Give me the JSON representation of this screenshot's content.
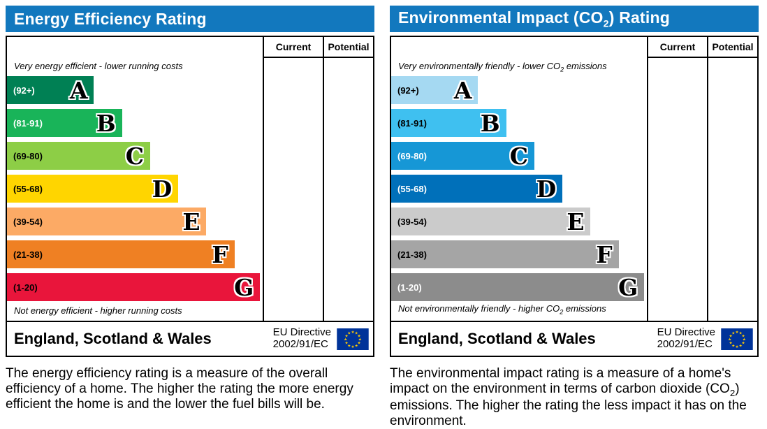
{
  "colors": {
    "header_bg": "#1278be",
    "border": "#000000",
    "flag_bg": "#003399",
    "flag_star": "#ffcc00"
  },
  "left": {
    "title": "Energy Efficiency Rating",
    "col_current": "Current",
    "col_potential": "Potential",
    "caption_top": "Very energy efficient - lower running costs",
    "caption_bottom": "Not energy efficient - higher running costs",
    "bands": [
      {
        "range": "(92+)",
        "letter": "A",
        "color": "#008054",
        "width_pct": 34,
        "range_color": "#ffffff"
      },
      {
        "range": "(81-91)",
        "letter": "B",
        "color": "#19b459",
        "width_pct": 45,
        "range_color": "#ffffff"
      },
      {
        "range": "(69-80)",
        "letter": "C",
        "color": "#8dce46",
        "width_pct": 56,
        "range_color": "#000000"
      },
      {
        "range": "(55-68)",
        "letter": "D",
        "color": "#ffd500",
        "width_pct": 67,
        "range_color": "#000000"
      },
      {
        "range": "(39-54)",
        "letter": "E",
        "color": "#fcaa65",
        "width_pct": 78,
        "range_color": "#000000"
      },
      {
        "range": "(21-38)",
        "letter": "F",
        "color": "#ef8023",
        "width_pct": 89,
        "range_color": "#000000"
      },
      {
        "range": "(1-20)",
        "letter": "G",
        "color": "#e9153b",
        "width_pct": 99,
        "range_color": "#000000"
      }
    ],
    "footer_region": "England, Scotland & Wales",
    "footer_directive_1": "EU Directive",
    "footer_directive_2": "2002/91/EC",
    "description": "The energy efficiency rating is a measure of the overall efficiency of a home. The higher the rating the more energy efficient the home is and the lower the fuel bills will be."
  },
  "right": {
    "title_pre": "Environmental Impact (CO",
    "title_sub": "2",
    "title_post": ") Rating",
    "col_current": "Current",
    "col_potential": "Potential",
    "caption_top_pre": "Very environmentally friendly - lower CO",
    "caption_top_sub": "2",
    "caption_top_post": " emissions",
    "caption_bottom_pre": "Not environmentally friendly - higher CO",
    "caption_bottom_sub": "2",
    "caption_bottom_post": " emissions",
    "bands": [
      {
        "range": "(92+)",
        "letter": "A",
        "color": "#a5d9f2",
        "width_pct": 34,
        "range_color": "#000000"
      },
      {
        "range": "(81-91)",
        "letter": "B",
        "color": "#3fc0f0",
        "width_pct": 45,
        "range_color": "#000000"
      },
      {
        "range": "(69-80)",
        "letter": "C",
        "color": "#1697d6",
        "width_pct": 56,
        "range_color": "#ffffff"
      },
      {
        "range": "(55-68)",
        "letter": "D",
        "color": "#0070ba",
        "width_pct": 67,
        "range_color": "#ffffff"
      },
      {
        "range": "(39-54)",
        "letter": "E",
        "color": "#cbcbcb",
        "width_pct": 78,
        "range_color": "#000000"
      },
      {
        "range": "(21-38)",
        "letter": "F",
        "color": "#a5a5a5",
        "width_pct": 89,
        "range_color": "#000000"
      },
      {
        "range": "(1-20)",
        "letter": "G",
        "color": "#8c8c8c",
        "width_pct": 99,
        "range_color": "#ffffff"
      }
    ],
    "footer_region": "England, Scotland & Wales",
    "footer_directive_1": "EU Directive",
    "footer_directive_2": "2002/91/EC",
    "description_pre": "The environmental impact rating is a measure of a home's impact on the environment in terms of carbon dioxide (CO",
    "description_sub": "2",
    "description_post": ") emissions. The higher the rating the less impact it has on the environment."
  },
  "chart_data": [
    {
      "type": "bar",
      "title": "Energy Efficiency Rating",
      "categories": [
        "A (92+)",
        "B (81-91)",
        "C (69-80)",
        "D (55-68)",
        "E (39-54)",
        "F (21-38)",
        "G (1-20)"
      ],
      "values": [
        34,
        45,
        56,
        67,
        78,
        89,
        99
      ],
      "value_note": "fixed-scale band widths (% of band column); no Current or Potential rating values are shown",
      "bar_colors": [
        "#008054",
        "#19b459",
        "#8dce46",
        "#ffd500",
        "#fcaa65",
        "#ef8023",
        "#e9153b"
      ],
      "columns": [
        "Current",
        "Potential"
      ],
      "top_label": "Very energy efficient - lower running costs",
      "bottom_label": "Not energy efficient - higher running costs",
      "footer": "England, Scotland & Wales — EU Directive 2002/91/EC"
    },
    {
      "type": "bar",
      "title": "Environmental Impact (CO2) Rating",
      "categories": [
        "A (92+)",
        "B (81-91)",
        "C (69-80)",
        "D (55-68)",
        "E (39-54)",
        "F (21-38)",
        "G (1-20)"
      ],
      "values": [
        34,
        45,
        56,
        67,
        78,
        89,
        99
      ],
      "value_note": "fixed-scale band widths (% of band column); no Current or Potential rating values are shown",
      "bar_colors": [
        "#a5d9f2",
        "#3fc0f0",
        "#1697d6",
        "#0070ba",
        "#cbcbcb",
        "#a5a5a5",
        "#8c8c8c"
      ],
      "columns": [
        "Current",
        "Potential"
      ],
      "top_label": "Very environmentally friendly - lower CO2 emissions",
      "bottom_label": "Not environmentally friendly - higher CO2 emissions",
      "footer": "England, Scotland & Wales — EU Directive 2002/91/EC"
    }
  ]
}
